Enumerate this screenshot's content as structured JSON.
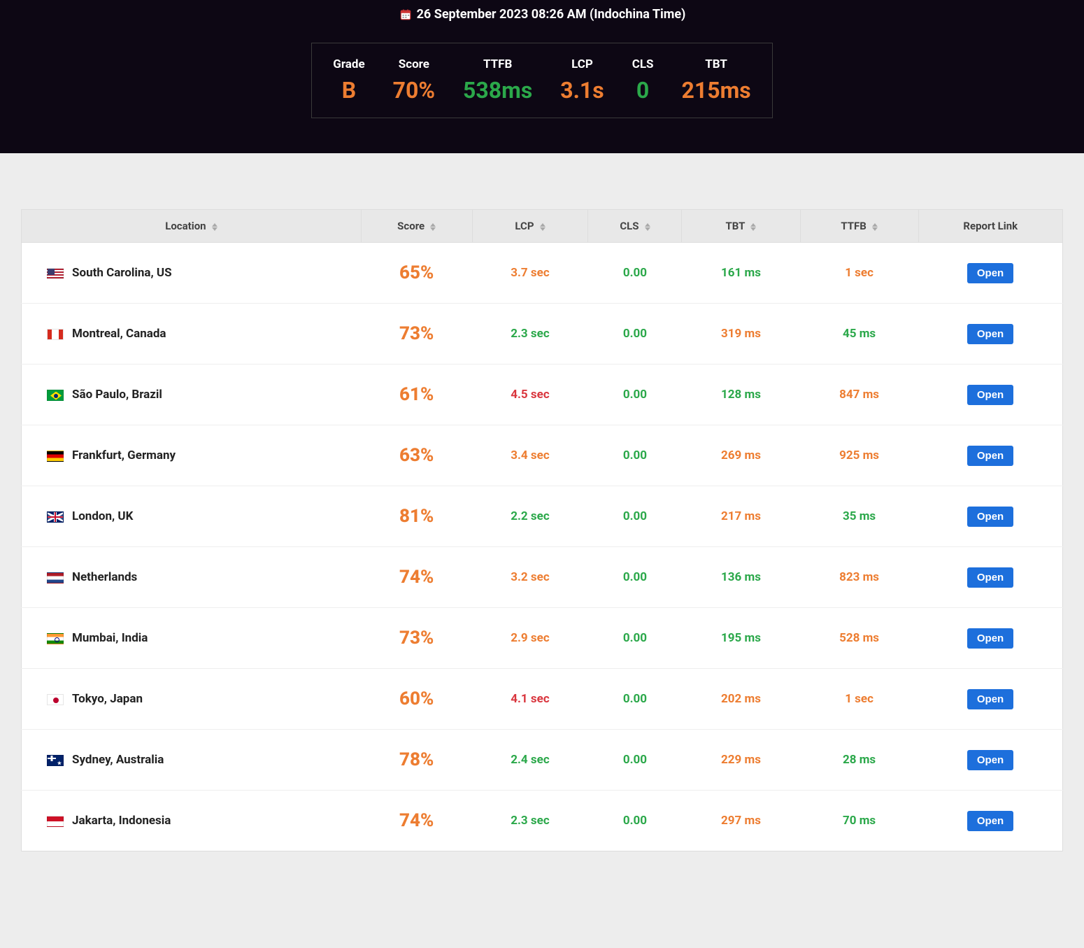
{
  "header": {
    "timestamp": "26 September 2023 08:26 AM (Indochina Time)",
    "calendar_icon": "calendar-icon"
  },
  "summary": {
    "items": [
      {
        "label": "Grade",
        "value": "B",
        "color": "orange"
      },
      {
        "label": "Score",
        "value": "70%",
        "color": "orange"
      },
      {
        "label": "TTFB",
        "value": "538ms",
        "color": "green"
      },
      {
        "label": "LCP",
        "value": "3.1s",
        "color": "orange"
      },
      {
        "label": "CLS",
        "value": "0",
        "color": "green"
      },
      {
        "label": "TBT",
        "value": "215ms",
        "color": "orange"
      }
    ]
  },
  "table": {
    "columns": [
      {
        "label": "Location",
        "sortable": true
      },
      {
        "label": "Score",
        "sortable": true
      },
      {
        "label": "LCP",
        "sortable": true
      },
      {
        "label": "CLS",
        "sortable": true
      },
      {
        "label": "TBT",
        "sortable": true
      },
      {
        "label": "TTFB",
        "sortable": true
      },
      {
        "label": "Report Link",
        "sortable": false
      }
    ],
    "open_label": "Open",
    "rows": [
      {
        "flag": "us",
        "location": "South Carolina, US",
        "score": "65%",
        "score_color": "orange",
        "lcp": "3.7 sec",
        "lcp_color": "orange",
        "cls": "0.00",
        "cls_color": "green",
        "tbt": "161 ms",
        "tbt_color": "green",
        "ttfb": "1 sec",
        "ttfb_color": "orange"
      },
      {
        "flag": "ca",
        "location": "Montreal, Canada",
        "score": "73%",
        "score_color": "orange",
        "lcp": "2.3 sec",
        "lcp_color": "green",
        "cls": "0.00",
        "cls_color": "green",
        "tbt": "319 ms",
        "tbt_color": "orange",
        "ttfb": "45 ms",
        "ttfb_color": "green"
      },
      {
        "flag": "br",
        "location": "São Paulo, Brazil",
        "score": "61%",
        "score_color": "orange",
        "lcp": "4.5 sec",
        "lcp_color": "red",
        "cls": "0.00",
        "cls_color": "green",
        "tbt": "128 ms",
        "tbt_color": "green",
        "ttfb": "847 ms",
        "ttfb_color": "orange"
      },
      {
        "flag": "de",
        "location": "Frankfurt, Germany",
        "score": "63%",
        "score_color": "orange",
        "lcp": "3.4 sec",
        "lcp_color": "orange",
        "cls": "0.00",
        "cls_color": "green",
        "tbt": "269 ms",
        "tbt_color": "orange",
        "ttfb": "925 ms",
        "ttfb_color": "orange"
      },
      {
        "flag": "gb",
        "location": "London, UK",
        "score": "81%",
        "score_color": "orange",
        "lcp": "2.2 sec",
        "lcp_color": "green",
        "cls": "0.00",
        "cls_color": "green",
        "tbt": "217 ms",
        "tbt_color": "orange",
        "ttfb": "35 ms",
        "ttfb_color": "green"
      },
      {
        "flag": "nl",
        "location": "Netherlands",
        "score": "74%",
        "score_color": "orange",
        "lcp": "3.2 sec",
        "lcp_color": "orange",
        "cls": "0.00",
        "cls_color": "green",
        "tbt": "136 ms",
        "tbt_color": "green",
        "ttfb": "823 ms",
        "ttfb_color": "orange"
      },
      {
        "flag": "in",
        "location": "Mumbai, India",
        "score": "73%",
        "score_color": "orange",
        "lcp": "2.9 sec",
        "lcp_color": "orange",
        "cls": "0.00",
        "cls_color": "green",
        "tbt": "195 ms",
        "tbt_color": "green",
        "ttfb": "528 ms",
        "ttfb_color": "orange"
      },
      {
        "flag": "jp",
        "location": "Tokyo, Japan",
        "score": "60%",
        "score_color": "orange",
        "lcp": "4.1 sec",
        "lcp_color": "red",
        "cls": "0.00",
        "cls_color": "green",
        "tbt": "202 ms",
        "tbt_color": "orange",
        "ttfb": "1 sec",
        "ttfb_color": "orange"
      },
      {
        "flag": "au",
        "location": "Sydney, Australia",
        "score": "78%",
        "score_color": "orange",
        "lcp": "2.4 sec",
        "lcp_color": "green",
        "cls": "0.00",
        "cls_color": "green",
        "tbt": "229 ms",
        "tbt_color": "orange",
        "ttfb": "28 ms",
        "ttfb_color": "green"
      },
      {
        "flag": "id",
        "location": "Jakarta, Indonesia",
        "score": "74%",
        "score_color": "orange",
        "lcp": "2.3 sec",
        "lcp_color": "green",
        "cls": "0.00",
        "cls_color": "green",
        "tbt": "297 ms",
        "tbt_color": "orange",
        "ttfb": "70 ms",
        "ttfb_color": "green"
      }
    ]
  },
  "colors": {
    "orange": "#ed7d31",
    "green": "#2ba84a",
    "red": "#d9363e",
    "header_bg": "#0d0714",
    "body_bg": "#ededed",
    "button_bg": "#1d6fdc",
    "th_bg": "#e8e8e8"
  }
}
